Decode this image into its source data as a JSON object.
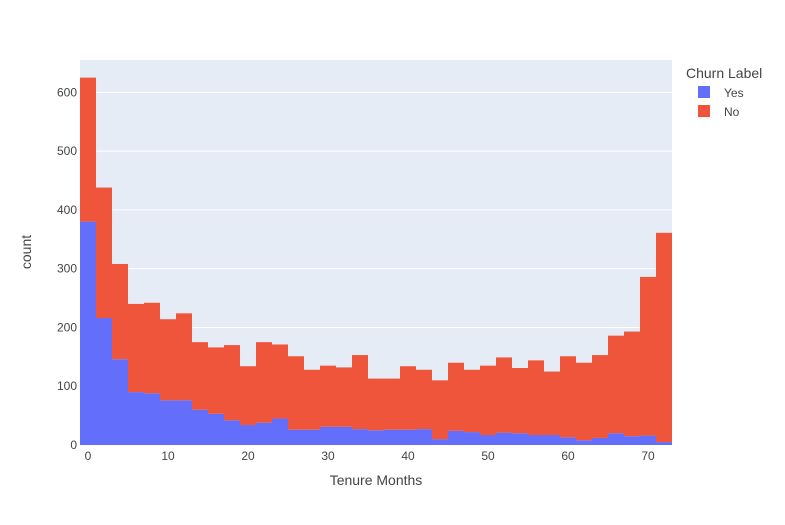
{
  "chart_data": {
    "type": "bar",
    "barmode": "stack",
    "title": "",
    "xlabel": "Tenure Months",
    "ylabel": "count",
    "legend_title": "Churn Label",
    "legend_position": "top-right",
    "grid": true,
    "bin_width": 2,
    "xlim": [
      -1,
      73
    ],
    "ylim": [
      0,
      655
    ],
    "x_ticks": [
      0,
      10,
      20,
      30,
      40,
      50,
      60,
      70
    ],
    "y_ticks": [
      0,
      100,
      200,
      300,
      400,
      500,
      600
    ],
    "bin_starts": [
      -1,
      1,
      3,
      5,
      7,
      9,
      11,
      13,
      15,
      17,
      19,
      21,
      23,
      25,
      27,
      29,
      31,
      33,
      35,
      37,
      39,
      41,
      43,
      45,
      47,
      49,
      51,
      53,
      55,
      57,
      59,
      61,
      63,
      65,
      67,
      69,
      71
    ],
    "series": [
      {
        "name": "Yes",
        "color": "#636efa",
        "values": [
          380,
          216,
          146,
          90,
          88,
          76,
          76,
          60,
          53,
          42,
          34,
          38,
          45,
          26,
          26,
          31,
          31,
          27,
          25,
          26,
          26,
          27,
          10,
          24,
          22,
          17,
          21,
          20,
          17,
          17,
          13,
          8,
          12,
          20,
          15,
          16,
          5
        ]
      },
      {
        "name": "No",
        "color": "#ef553b",
        "values": [
          245,
          222,
          162,
          150,
          154,
          138,
          148,
          115,
          113,
          128,
          100,
          137,
          126,
          125,
          102,
          104,
          101,
          126,
          88,
          87,
          108,
          101,
          100,
          116,
          106,
          118,
          128,
          111,
          127,
          108,
          138,
          132,
          141,
          166,
          178,
          270,
          356
        ]
      }
    ]
  }
}
